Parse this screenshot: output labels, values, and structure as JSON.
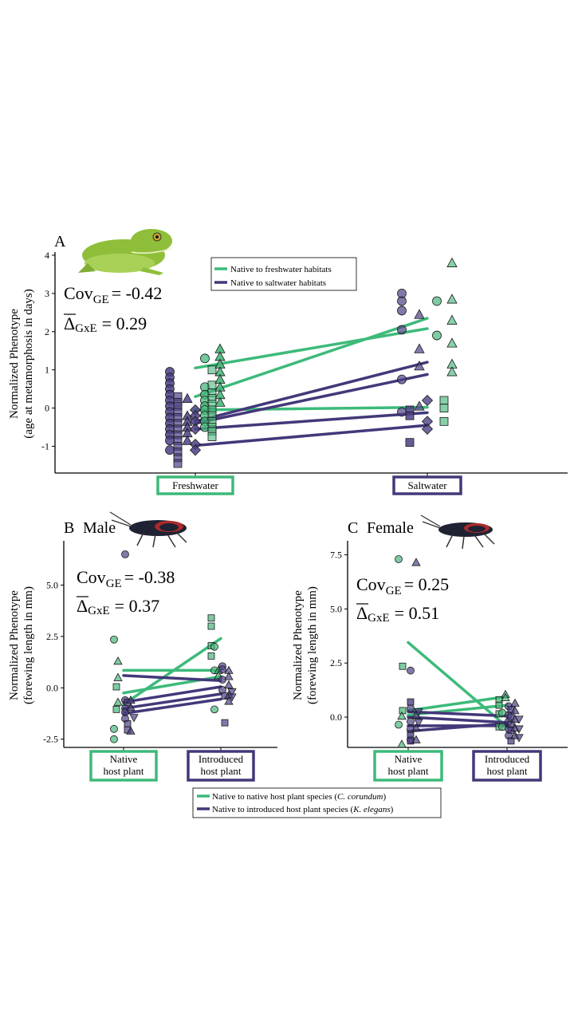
{
  "colors": {
    "green": "#3dba7a",
    "purple": "#433879",
    "green_fill": "#47b77b",
    "purple_fill": "#4b4185",
    "axis": "#000000"
  },
  "chart_data": [
    {
      "type": "scatter",
      "panel": "A",
      "organism_icon": "frog-icon",
      "title": "",
      "ylabel_lines": [
        "Normalized Phenotype",
        "(age at metamorphosis in days)"
      ],
      "y_ticks": [
        "4",
        "3",
        "2",
        "1",
        "0",
        "-1"
      ],
      "ylim": [
        -1.7,
        4.1
      ],
      "categories": [
        "Freshwater",
        "Saltwater"
      ],
      "category_box_colors": [
        "green",
        "purple"
      ],
      "cov_label": "Cov",
      "cov_sub": "GE",
      "cov_value": "= -0.42",
      "delta_label": "Δ",
      "delta_sub": "GxE",
      "delta_value": "= 0.29",
      "legend": [
        {
          "color": "green",
          "label": "Native to freshwater habitats"
        },
        {
          "color": "purple",
          "label": "Native to saltwater habitats"
        }
      ],
      "lines": [
        {
          "group": "green",
          "y": [
            1.05,
            2.08
          ]
        },
        {
          "group": "green",
          "y": [
            0.3,
            2.35
          ]
        },
        {
          "group": "green",
          "y": [
            -0.05,
            0.02
          ]
        },
        {
          "group": "purple",
          "y": [
            -0.35,
            1.2
          ]
        },
        {
          "group": "purple",
          "y": [
            -0.4,
            0.88
          ]
        },
        {
          "group": "purple",
          "y": [
            -0.55,
            -0.12
          ]
        },
        {
          "group": "purple",
          "y": [
            -0.98,
            -0.45
          ]
        }
      ],
      "point_groups": [
        {
          "cat": 0,
          "dx": -32,
          "group": "purple",
          "shape": "circle",
          "opacity": 0.85,
          "y": [
            0.95,
            0.8,
            0.65,
            0.5,
            0.35,
            0.2,
            0.05,
            -0.1,
            -0.25,
            -0.4,
            -0.55,
            -0.7,
            -0.85,
            -1.1
          ]
        },
        {
          "cat": 0,
          "dx": -22,
          "group": "purple",
          "shape": "square",
          "opacity": 0.7,
          "y": [
            0.3,
            0.15,
            0.05,
            -0.1,
            -0.25,
            -0.4,
            -0.55,
            -0.7,
            -0.85,
            -1.0,
            -1.15,
            -1.3,
            -1.45
          ]
        },
        {
          "cat": 0,
          "dx": -10,
          "group": "purple",
          "shape": "triangle",
          "opacity": 0.85,
          "y": [
            0.25,
            -0.2,
            -0.35,
            -0.5,
            -0.65,
            -0.85
          ]
        },
        {
          "cat": 0,
          "dx": 0,
          "group": "purple",
          "shape": "diamond",
          "opacity": 0.85,
          "y": [
            -0.05,
            -0.2,
            -0.35,
            -0.55,
            -0.95,
            -1.1
          ]
        },
        {
          "cat": 0,
          "dx": 12,
          "group": "green",
          "shape": "circle",
          "opacity": 0.75,
          "y": [
            1.3,
            0.55,
            0.35,
            0.2,
            0.05,
            -0.05,
            -0.2,
            -0.35,
            -0.5
          ]
        },
        {
          "cat": 0,
          "dx": 21,
          "group": "green",
          "shape": "square",
          "opacity": 0.6,
          "y": [
            1.0,
            0.6,
            0.4,
            0.25,
            0.1,
            -0.05,
            -0.2,
            -0.35,
            -0.5,
            -0.6,
            -0.75
          ]
        },
        {
          "cat": 0,
          "dx": 31,
          "group": "green",
          "shape": "triangle",
          "opacity": 0.9,
          "y": [
            1.55,
            1.35,
            1.15,
            0.95,
            0.75,
            0.55,
            0.35,
            0.15
          ]
        },
        {
          "cat": 1,
          "dx": -32,
          "group": "purple",
          "shape": "circle",
          "opacity": 0.7,
          "y": [
            3.0,
            2.8,
            2.55,
            2.05,
            0.75,
            -0.1
          ]
        },
        {
          "cat": 1,
          "dx": -22,
          "group": "purple",
          "shape": "square",
          "opacity": 0.85,
          "y": [
            -0.05,
            -0.2,
            -0.9
          ]
        },
        {
          "cat": 1,
          "dx": -10,
          "group": "purple",
          "shape": "triangle",
          "opacity": 0.7,
          "y": [
            2.45,
            1.55,
            1.1,
            0.05
          ]
        },
        {
          "cat": 1,
          "dx": 0,
          "group": "purple",
          "shape": "diamond",
          "opacity": 0.8,
          "y": [
            0.2,
            -0.35,
            -0.55
          ]
        },
        {
          "cat": 1,
          "dx": 12,
          "group": "green",
          "shape": "circle",
          "opacity": 0.7,
          "y": [
            2.8,
            1.9
          ]
        },
        {
          "cat": 1,
          "dx": 21,
          "group": "green",
          "shape": "square",
          "opacity": 0.65,
          "y": [
            0.2,
            0.0,
            -0.35
          ]
        },
        {
          "cat": 1,
          "dx": 31,
          "group": "green",
          "shape": "triangle",
          "opacity": 0.65,
          "y": [
            3.8,
            2.85,
            2.3,
            1.7,
            1.15,
            0.95
          ]
        }
      ]
    },
    {
      "type": "scatter",
      "panel": "B",
      "sex": "Male",
      "organism_icon": "bug-icon",
      "title": "",
      "ylabel_lines": [
        "Normalized Phenotype",
        "(forewing length in mm)"
      ],
      "y_ticks": [
        "5.0",
        "2.5",
        "0.0",
        "-2.5"
      ],
      "ylim": [
        -2.9,
        7.0
      ],
      "categories": [
        "Native\nhost plant",
        "Introduced\nhost plant"
      ],
      "category_box_colors": [
        "green",
        "purple"
      ],
      "cov_label": "Cov",
      "cov_sub": "GE",
      "cov_value": "= -0.38",
      "delta_label": "Δ",
      "delta_sub": "GxE",
      "delta_value": "= 0.37",
      "lines": [
        {
          "group": "green",
          "y": [
            -0.8,
            2.4
          ]
        },
        {
          "group": "green",
          "y": [
            0.85,
            0.85
          ]
        },
        {
          "group": "green",
          "y": [
            -0.25,
            0.55
          ]
        },
        {
          "group": "purple",
          "y": [
            0.6,
            0.35
          ]
        },
        {
          "group": "purple",
          "y": [
            -0.7,
            0.05
          ]
        },
        {
          "group": "purple",
          "y": [
            -1.0,
            -0.3
          ]
        },
        {
          "group": "purple",
          "y": [
            -1.25,
            -0.55
          ]
        }
      ],
      "point_groups": [
        {
          "cat": 0,
          "dx": -12,
          "group": "green",
          "shape": "circle",
          "opacity": 0.7,
          "y": [
            2.35,
            -2.0,
            -2.5
          ]
        },
        {
          "cat": 0,
          "dx": -7,
          "group": "green",
          "shape": "triangle",
          "opacity": 0.7,
          "y": [
            1.3,
            0.5,
            -0.7
          ]
        },
        {
          "cat": 0,
          "dx": -9,
          "group": "green",
          "shape": "square",
          "opacity": 0.7,
          "y": [
            0.05,
            -1.05
          ]
        },
        {
          "cat": 0,
          "dx": 2,
          "group": "purple",
          "shape": "circle",
          "opacity": 0.7,
          "y": [
            6.5,
            -0.6,
            -1.0,
            -1.2,
            -1.5
          ]
        },
        {
          "cat": 0,
          "dx": 5,
          "group": "purple",
          "shape": "square",
          "opacity": 0.7,
          "y": [
            -0.7,
            -1.75,
            -2.05
          ]
        },
        {
          "cat": 0,
          "dx": 9,
          "group": "purple",
          "shape": "triangle",
          "opacity": 0.75,
          "y": [
            -0.6,
            -0.95,
            -2.1
          ]
        },
        {
          "cat": 0,
          "dx": 13,
          "group": "purple",
          "shape": "tri-down",
          "opacity": 0.7,
          "y": [
            -1.45
          ]
        },
        {
          "cat": 1,
          "dx": -12,
          "group": "green",
          "shape": "square",
          "opacity": 0.7,
          "y": [
            3.4,
            3.0,
            2.05,
            1.55
          ]
        },
        {
          "cat": 1,
          "dx": -8,
          "group": "green",
          "shape": "circle",
          "opacity": 0.7,
          "y": [
            2.0,
            0.85,
            -1.05
          ]
        },
        {
          "cat": 1,
          "dx": -3,
          "group": "green",
          "shape": "triangle",
          "opacity": 0.7,
          "y": [
            0.85,
            0.6
          ]
        },
        {
          "cat": 1,
          "dx": 2,
          "group": "purple",
          "shape": "circle",
          "opacity": 0.7,
          "y": [
            1.05,
            0.9,
            0.4,
            -0.1
          ]
        },
        {
          "cat": 1,
          "dx": 5,
          "group": "purple",
          "shape": "square",
          "opacity": 0.7,
          "y": [
            -0.4,
            -1.7
          ]
        },
        {
          "cat": 1,
          "dx": 10,
          "group": "purple",
          "shape": "triangle",
          "opacity": 0.7,
          "y": [
            0.85,
            0.55,
            0.15,
            -0.35,
            -0.65
          ]
        },
        {
          "cat": 1,
          "dx": 14,
          "group": "purple",
          "shape": "tri-down",
          "opacity": 0.7,
          "y": [
            -0.2,
            -0.45
          ]
        }
      ]
    },
    {
      "type": "scatter",
      "panel": "C",
      "sex": "Female",
      "organism_icon": "bug-icon",
      "title": "",
      "ylabel_lines": [
        "Normalized Phenotype",
        "(forewing length in mm)"
      ],
      "y_ticks": [
        "7.5",
        "5.0",
        "2.5",
        "0.0"
      ],
      "ylim": [
        -1.4,
        8.0
      ],
      "categories": [
        "Native\nhost plant",
        "Introduced\nhost plant"
      ],
      "category_box_colors": [
        "green",
        "purple"
      ],
      "cov_label": "Cov",
      "cov_sub": "GE",
      "cov_value": "= 0.25",
      "delta_label": "Δ",
      "delta_sub": "GxE",
      "delta_value": "= 0.51",
      "lines": [
        {
          "group": "green",
          "y": [
            3.45,
            -0.45
          ]
        },
        {
          "group": "green",
          "y": [
            0.3,
            0.95
          ]
        },
        {
          "group": "green",
          "y": [
            0.1,
            0.55
          ]
        },
        {
          "group": "purple",
          "y": [
            0.25,
            0.05
          ]
        },
        {
          "group": "purple",
          "y": [
            0.0,
            -0.25
          ]
        },
        {
          "group": "purple",
          "y": [
            -0.4,
            -0.4
          ]
        },
        {
          "group": "purple",
          "y": [
            -0.65,
            -0.3
          ]
        }
      ],
      "point_groups": [
        {
          "cat": 0,
          "dx": -12,
          "group": "green",
          "shape": "circle",
          "opacity": 0.7,
          "y": [
            7.3,
            -0.35
          ]
        },
        {
          "cat": 0,
          "dx": -7,
          "group": "green",
          "shape": "square",
          "opacity": 0.7,
          "y": [
            2.35,
            0.3
          ]
        },
        {
          "cat": 0,
          "dx": -8,
          "group": "green",
          "shape": "triangle",
          "opacity": 0.7,
          "y": [
            0.05,
            -1.25
          ]
        },
        {
          "cat": 0,
          "dx": 3,
          "group": "purple",
          "shape": "circle",
          "opacity": 0.7,
          "y": [
            2.15,
            0.4,
            -0.2,
            -0.55,
            -1.05
          ]
        },
        {
          "cat": 0,
          "dx": 3,
          "group": "purple",
          "shape": "square",
          "opacity": 0.8,
          "y": [
            0.7,
            -0.85,
            -1.1
          ]
        },
        {
          "cat": 0,
          "dx": 10,
          "group": "purple",
          "shape": "triangle",
          "opacity": 0.7,
          "y": [
            7.15,
            0.1,
            -0.5,
            -1.05
          ]
        },
        {
          "cat": 0,
          "dx": 13,
          "group": "purple",
          "shape": "tri-down",
          "opacity": 0.7,
          "y": [
            0.25,
            -0.25
          ]
        },
        {
          "cat": 1,
          "dx": -10,
          "group": "green",
          "shape": "square",
          "opacity": 0.7,
          "y": [
            0.8,
            0.55,
            0.15,
            -0.45
          ]
        },
        {
          "cat": 1,
          "dx": -6,
          "group": "green",
          "shape": "circle",
          "opacity": 0.7,
          "y": [
            0.2,
            -0.45
          ]
        },
        {
          "cat": 1,
          "dx": -2,
          "group": "green",
          "shape": "triangle",
          "opacity": 0.7,
          "y": [
            1.05,
            0.9
          ]
        },
        {
          "cat": 1,
          "dx": 2,
          "group": "purple",
          "shape": "circle",
          "opacity": 0.7,
          "y": [
            0.5,
            0.1,
            -0.2,
            -0.55,
            -0.85
          ]
        },
        {
          "cat": 1,
          "dx": 5,
          "group": "purple",
          "shape": "square",
          "opacity": 0.75,
          "y": [
            0.35,
            0.0,
            -0.35,
            -0.6,
            -1.1
          ]
        },
        {
          "cat": 1,
          "dx": 10,
          "group": "purple",
          "shape": "triangle",
          "opacity": 0.7,
          "y": [
            0.65,
            0.3,
            -0.1,
            -0.5,
            -0.85
          ]
        },
        {
          "cat": 1,
          "dx": 15,
          "group": "purple",
          "shape": "tri-down",
          "opacity": 0.7,
          "y": [
            -0.1,
            -0.55,
            -0.95
          ]
        }
      ]
    }
  ],
  "bottom_legend": [
    {
      "color": "green",
      "prefix": "Native to native host plant species (",
      "italic": "C. corundum",
      "suffix": ")"
    },
    {
      "color": "purple",
      "prefix": "Native to introduced host plant species (",
      "italic": "K. elegans",
      "suffix": ")"
    }
  ]
}
